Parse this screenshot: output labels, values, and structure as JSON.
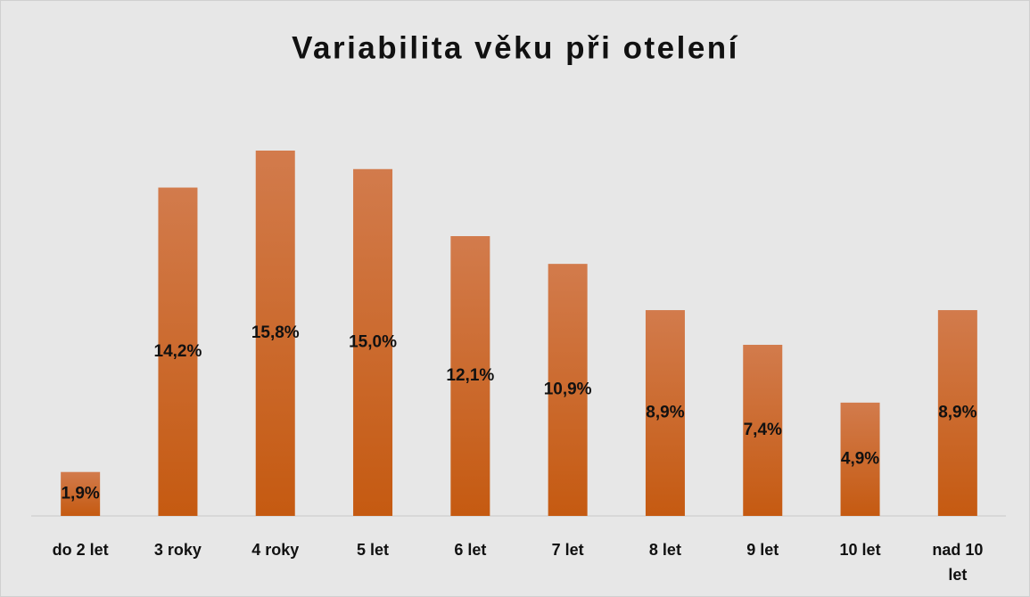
{
  "chart_data": {
    "type": "bar",
    "title": "Variabilita věku při otelení",
    "categories": [
      "do 2 let",
      "3 roky",
      "4 roky",
      "5 let",
      "6 let",
      "7 let",
      "8 let",
      "9 let",
      "10 let",
      "nad 10 let"
    ],
    "values": [
      1.9,
      14.2,
      15.8,
      15.0,
      12.1,
      10.9,
      8.9,
      7.4,
      4.9,
      8.9
    ],
    "value_labels": [
      "1,9%",
      "14,2%",
      "15,8%",
      "15,0%",
      "12,1%",
      "10,9%",
      "8,9%",
      "7,4%",
      "4,9%",
      "8,9%"
    ],
    "color": "#c55a11"
  }
}
